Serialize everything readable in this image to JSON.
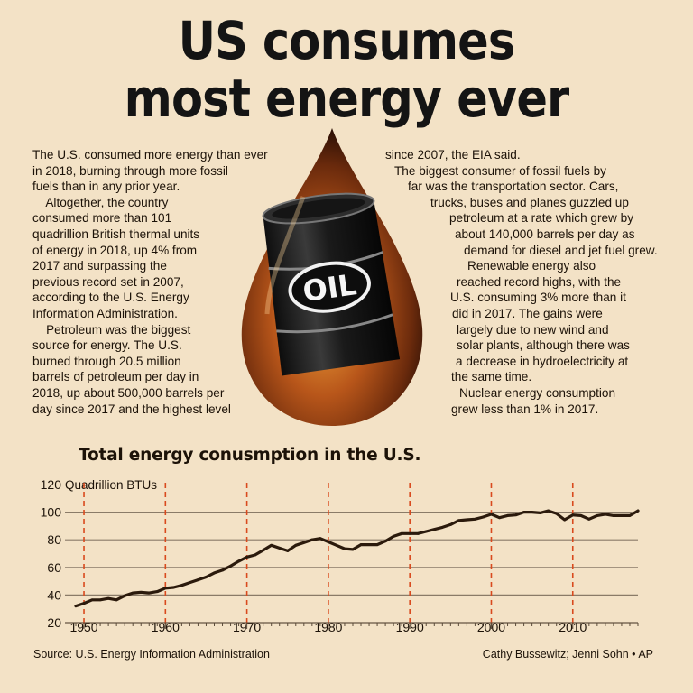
{
  "headline": {
    "line1": "US consumes",
    "line2": "most energy ever"
  },
  "article": {
    "left_lines": [
      "The U.S. consumed more energy than ever",
      "in 2018, burning through more fossil",
      "fuels than in any prior year.",
      "    Altogether, the country",
      "consumed more than 101",
      "quadrillion British thermal units",
      "of energy in 2018, up 4% from",
      "2017 and surpassing the",
      "previous record set in 2007,",
      "according to the U.S. Energy",
      "Information Administration.",
      "    Petroleum was the biggest",
      "source for energy. The U.S.",
      "burned through 20.5 million",
      "barrels of petroleum per day in",
      "2018, up about 500,000 barrels per",
      "day since 2017 and the highest level"
    ],
    "right_lines": [
      {
        "text": "since 2007, the EIA said.",
        "indent": 7
      },
      {
        "text": "The biggest consumer of fossil fuels by",
        "indent": 17
      },
      {
        "text": "far was the transportation sector. Cars,",
        "indent": 32
      },
      {
        "text": "trucks, buses and planes guzzled up",
        "indent": 57
      },
      {
        "text": "petroleum at a rate which grew by",
        "indent": 78
      },
      {
        "text": "about 140,000 barrels per day as",
        "indent": 84
      },
      {
        "text": "demand for diesel and jet fuel grew.",
        "indent": 94
      },
      {
        "text": "Renewable energy also",
        "indent": 98
      },
      {
        "text": "reached record highs, with the",
        "indent": 86
      },
      {
        "text": "U.S. consuming 3% more than it",
        "indent": 79
      },
      {
        "text": "did in 2017. The gains were",
        "indent": 81
      },
      {
        "text": "largely due to new wind and",
        "indent": 86
      },
      {
        "text": "solar plants, although there was",
        "indent": 86
      },
      {
        "text": "a decrease in hydroelectricity at",
        "indent": 85
      },
      {
        "text": "the same time.",
        "indent": 80
      },
      {
        "text": "Nuclear energy consumption",
        "indent": 89
      },
      {
        "text": "grew less than 1% in 2017.",
        "indent": 80
      }
    ]
  },
  "illustration": {
    "label": "OIL"
  },
  "chart_data": {
    "type": "line",
    "title": "Total energy conusmption in the U.S.",
    "unit_label": "Quadrillion BTUs",
    "ylim": [
      20,
      120
    ],
    "yticks": [
      20,
      40,
      60,
      80,
      100,
      120
    ],
    "xlim": [
      1949,
      2018
    ],
    "xticks": [
      1950,
      1960,
      1970,
      1980,
      1990,
      2000,
      2010
    ],
    "decade_markers": [
      1950,
      1960,
      1970,
      1980,
      1990,
      2000,
      2010
    ],
    "grid": true,
    "x": [
      1949,
      1950,
      1951,
      1952,
      1953,
      1954,
      1955,
      1956,
      1957,
      1958,
      1959,
      1960,
      1961,
      1962,
      1963,
      1964,
      1965,
      1966,
      1967,
      1968,
      1969,
      1970,
      1971,
      1972,
      1973,
      1974,
      1975,
      1976,
      1977,
      1978,
      1979,
      1980,
      1981,
      1982,
      1983,
      1984,
      1985,
      1986,
      1987,
      1988,
      1989,
      1990,
      1991,
      1992,
      1993,
      1994,
      1995,
      1996,
      1997,
      1998,
      1999,
      2000,
      2001,
      2002,
      2003,
      2004,
      2005,
      2006,
      2007,
      2008,
      2009,
      2010,
      2011,
      2012,
      2013,
      2014,
      2015,
      2016,
      2017,
      2018
    ],
    "values": [
      32,
      34,
      36.5,
      36.5,
      37.5,
      36.5,
      39.5,
      41.5,
      42,
      41.5,
      42.5,
      45,
      45.5,
      47,
      49,
      51,
      53,
      56,
      58,
      61,
      64.5,
      67.5,
      69,
      72.5,
      76,
      74,
      72,
      76,
      78,
      80,
      81,
      78.5,
      76,
      73.5,
      73,
      76.5,
      76.5,
      76.5,
      79,
      82.5,
      84.5,
      84.5,
      84.5,
      86,
      87.5,
      89,
      91,
      94,
      94.5,
      95,
      96.5,
      98.5,
      96,
      97.5,
      98,
      100,
      100,
      99.5,
      101,
      99,
      94.5,
      98,
      97.5,
      95,
      97.5,
      98.5,
      97.5,
      97.5,
      97.5,
      101
    ]
  },
  "footer": {
    "source": "Source: U.S. Energy Information Administration",
    "credit": "Cathy Bussewitz; Jenni Sohn • AP"
  },
  "colors": {
    "background": "#f3e2c6",
    "line": "#2b1a0c",
    "grid": "#8a7b68",
    "decade_marker": "#d94a1e"
  }
}
